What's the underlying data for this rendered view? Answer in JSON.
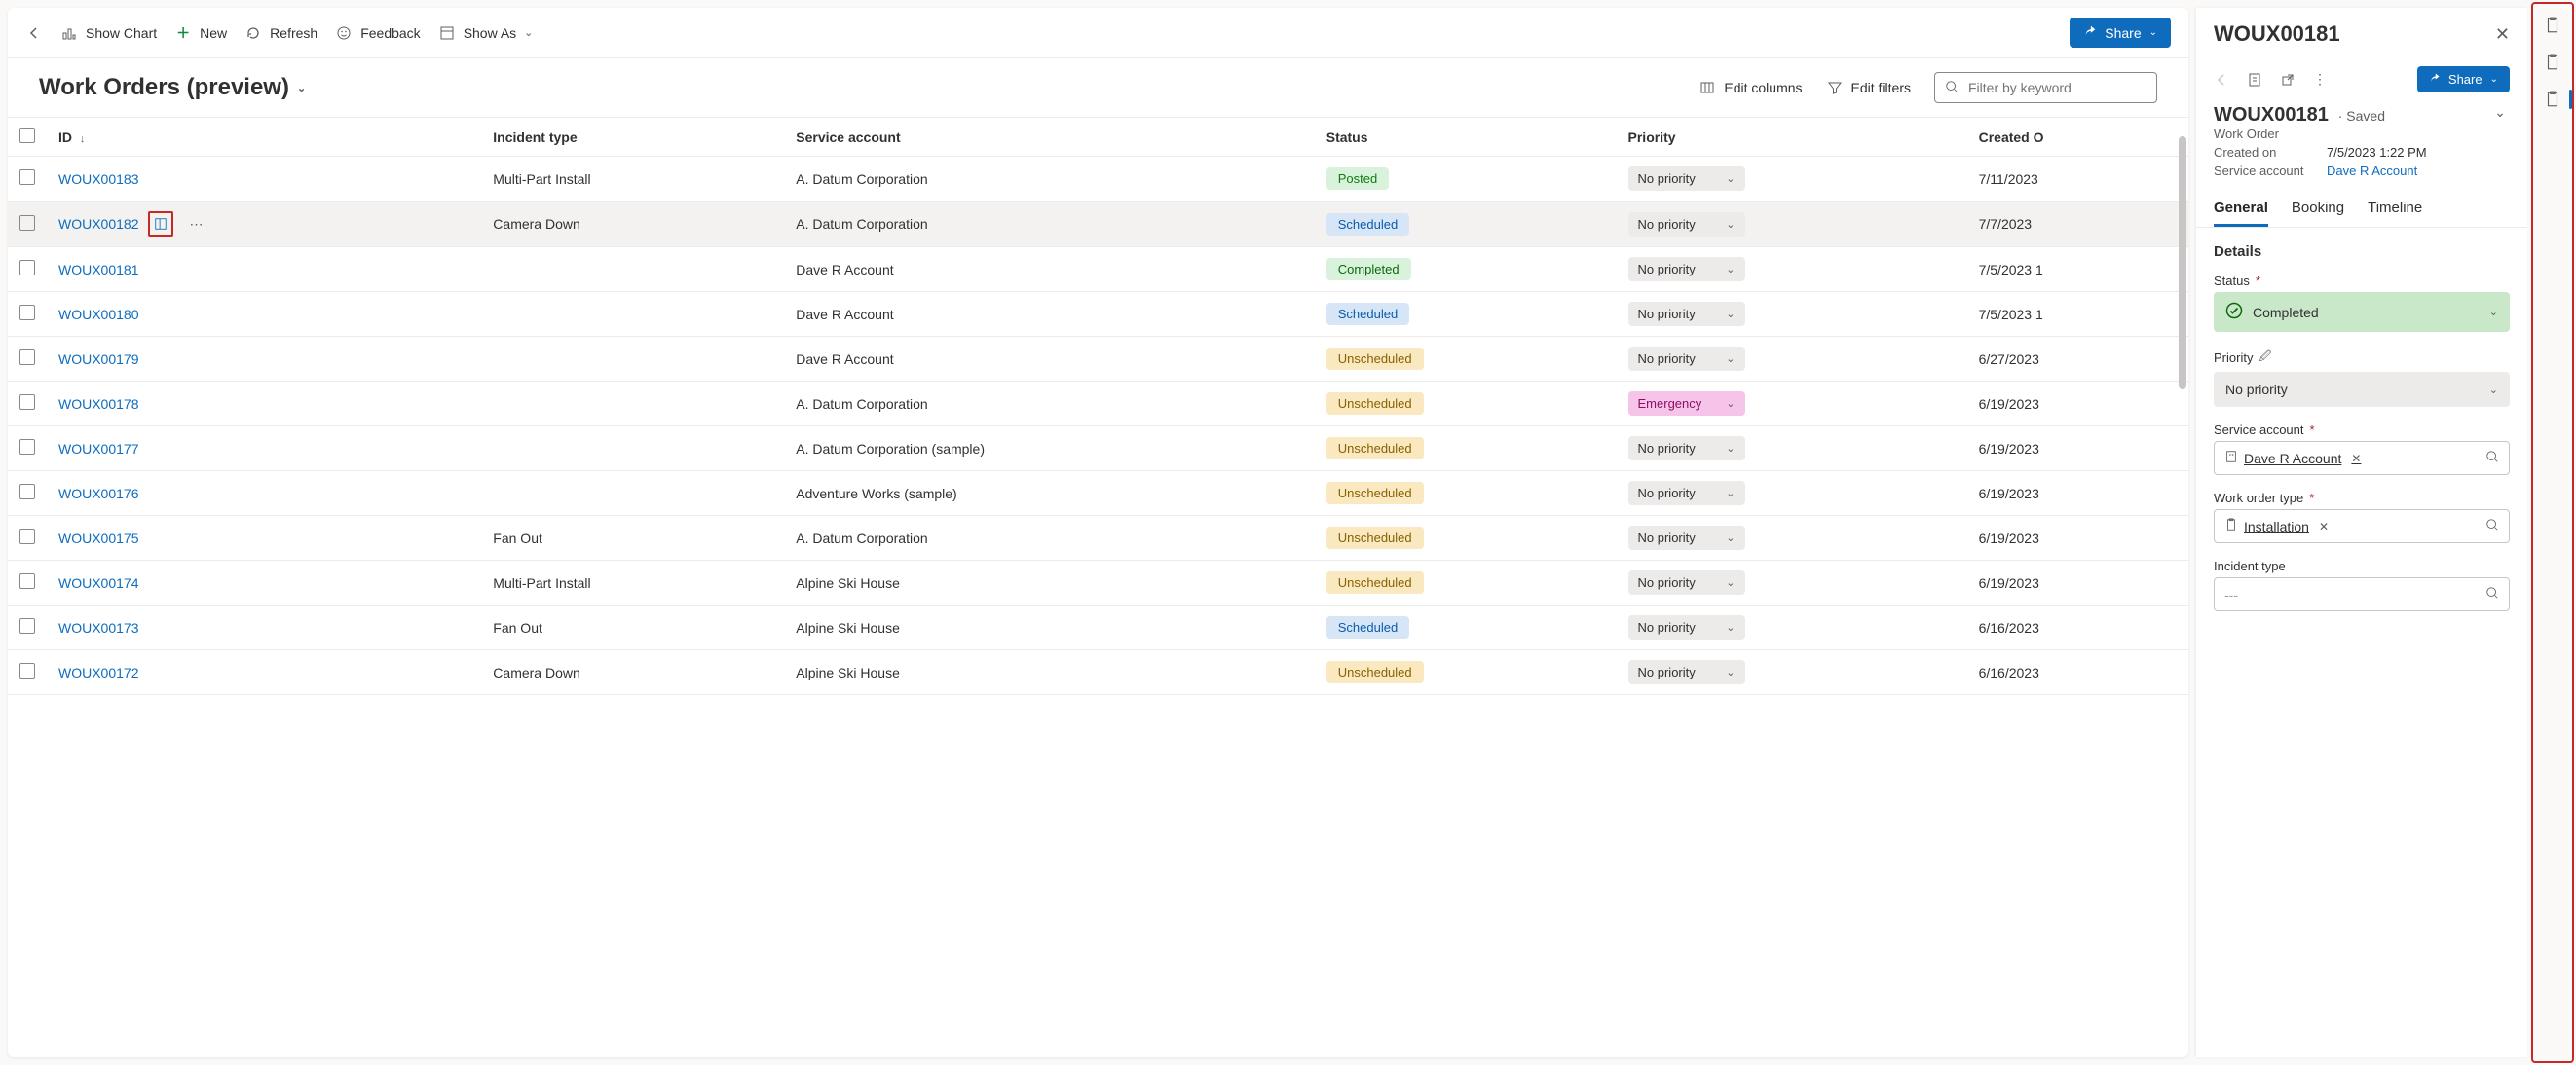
{
  "toolbar": {
    "show_chart": "Show Chart",
    "new": "New",
    "refresh": "Refresh",
    "feedback": "Feedback",
    "show_as": "Show As",
    "share": "Share"
  },
  "view": {
    "title": "Work Orders (preview)",
    "edit_columns": "Edit columns",
    "edit_filters": "Edit filters",
    "filter_placeholder": "Filter by keyword"
  },
  "columns": {
    "id": "ID",
    "incident": "Incident type",
    "account": "Service account",
    "status": "Status",
    "priority": "Priority",
    "created": "Created O"
  },
  "rows": [
    {
      "id": "WOUX00183",
      "incident": "Multi-Part Install",
      "account": "A. Datum Corporation",
      "status": "Posted",
      "priority": "No priority",
      "created": "7/11/2023"
    },
    {
      "id": "WOUX00182",
      "incident": "Camera Down",
      "account": "A. Datum Corporation",
      "status": "Scheduled",
      "priority": "No priority",
      "created": "7/7/2023",
      "hovered": true
    },
    {
      "id": "WOUX00181",
      "incident": "",
      "account": "Dave R Account",
      "status": "Completed",
      "priority": "No priority",
      "created": "7/5/2023 1"
    },
    {
      "id": "WOUX00180",
      "incident": "",
      "account": "Dave R Account",
      "status": "Scheduled",
      "priority": "No priority",
      "created": "7/5/2023 1"
    },
    {
      "id": "WOUX00179",
      "incident": "",
      "account": "Dave R Account",
      "status": "Unscheduled",
      "priority": "No priority",
      "created": "6/27/2023"
    },
    {
      "id": "WOUX00178",
      "incident": "",
      "account": "A. Datum Corporation",
      "status": "Unscheduled",
      "priority": "Emergency",
      "created": "6/19/2023"
    },
    {
      "id": "WOUX00177",
      "incident": "",
      "account": "A. Datum Corporation (sample)",
      "status": "Unscheduled",
      "priority": "No priority",
      "created": "6/19/2023"
    },
    {
      "id": "WOUX00176",
      "incident": "",
      "account": "Adventure Works (sample)",
      "status": "Unscheduled",
      "priority": "No priority",
      "created": "6/19/2023"
    },
    {
      "id": "WOUX00175",
      "incident": "Fan Out",
      "account": "A. Datum Corporation",
      "status": "Unscheduled",
      "priority": "No priority",
      "created": "6/19/2023"
    },
    {
      "id": "WOUX00174",
      "incident": "Multi-Part Install",
      "account": "Alpine Ski House",
      "status": "Unscheduled",
      "priority": "No priority",
      "created": "6/19/2023"
    },
    {
      "id": "WOUX00173",
      "incident": "Fan Out",
      "account": "Alpine Ski House",
      "status": "Scheduled",
      "priority": "No priority",
      "created": "6/16/2023"
    },
    {
      "id": "WOUX00172",
      "incident": "Camera Down",
      "account": "Alpine Ski House",
      "status": "Unscheduled",
      "priority": "No priority",
      "created": "6/16/2023"
    }
  ],
  "panel": {
    "id": "WOUX00181",
    "share": "Share",
    "entity_name": "WOUX00181",
    "save_state": "Saved",
    "entity_type": "Work Order",
    "created_on_label": "Created on",
    "created_on": "7/5/2023 1:22 PM",
    "service_account_label": "Service account",
    "service_account": "Dave R Account",
    "tabs": {
      "general": "General",
      "booking": "Booking",
      "timeline": "Timeline"
    },
    "details": "Details",
    "fields": {
      "status_label": "Status",
      "status_value": "Completed",
      "priority_label": "Priority",
      "priority_value": "No priority",
      "account_label": "Service account",
      "account_value": "Dave R Account",
      "wotype_label": "Work order type",
      "wotype_value": "Installation",
      "incident_label": "Incident type",
      "incident_placeholder": "---"
    }
  },
  "colors": {
    "primary": "#0f6cbd",
    "highlight_border": "#c62828",
    "pill_green_bg": "#d9f2dc",
    "pill_blue_bg": "#d6e6f7",
    "pill_amber_bg": "#f9e8c0",
    "pill_pink_bg": "#f5c4e8",
    "field_green_bg": "#c9e7c9",
    "field_grey_bg": "#edebe9"
  }
}
